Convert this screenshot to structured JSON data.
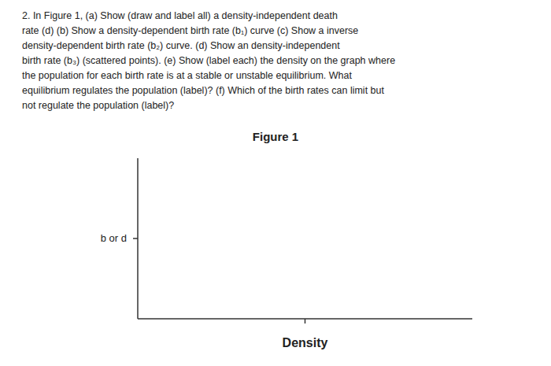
{
  "chart_data": {
    "type": "line",
    "title": "Figure 1",
    "annotations": [
      "2. In Figure 1, (a) Show (draw and label all) a density-independent death",
      "rate (d) (b) Show a density-dependent birth rate (b₁) curve  (c) Show a inverse",
      "density-dependent birth  rate (b₂) curve.  (d) Show an density-independent",
      "birth  rate (b₃) (scattered points). (e) Show (label each) the density on the graph where",
      "the population for each birth rate is at a stable or unstable equilibrium.  What",
      "equilibrium regulates the population (label)?  (f) Which of the birth rates can limit but",
      "not regulate the population (label)?"
    ],
    "xlabel": "Density",
    "ylabel": "b or d",
    "xlim": [
      0,
      1
    ],
    "ylim": [
      0,
      1
    ],
    "xticks": [
      0.5
    ],
    "yticks": [
      0.5
    ],
    "tick_labels": false,
    "grid": false
  }
}
